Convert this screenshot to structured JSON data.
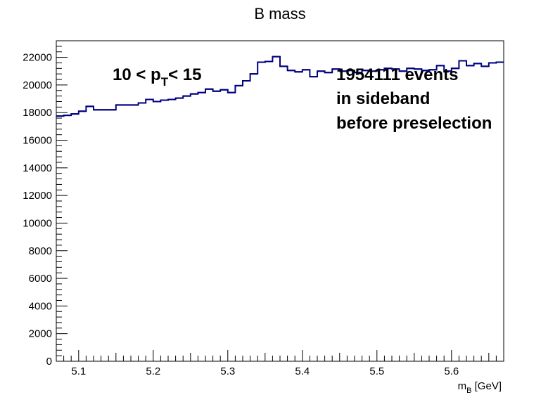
{
  "chart_data": {
    "type": "histogram",
    "title": "B mass",
    "xlabel": "",
    "xlabel_main": "m",
    "xlabel_sub": "B",
    "xlabel_unit": " [GeV]",
    "ylabel": "",
    "xlim": [
      5.07,
      5.67
    ],
    "ylim": [
      0,
      23200
    ],
    "x_ticks": [
      5.1,
      5.2,
      5.3,
      5.4,
      5.5,
      5.6
    ],
    "x_tick_labels": [
      "5.1",
      "5.2",
      "5.3",
      "5.4",
      "5.5",
      "5.6"
    ],
    "y_ticks": [
      0,
      2000,
      4000,
      6000,
      8000,
      10000,
      12000,
      14000,
      16000,
      18000,
      20000,
      22000
    ],
    "y_tick_labels": [
      "0",
      "2000",
      "4000",
      "6000",
      "8000",
      "10000",
      "12000",
      "14000",
      "16000",
      "18000",
      "20000",
      "22000"
    ],
    "bin_edges": [
      5.07,
      5.08,
      5.09,
      5.1,
      5.11,
      5.12,
      5.13,
      5.14,
      5.15,
      5.16,
      5.17,
      5.18,
      5.19,
      5.2,
      5.21,
      5.22,
      5.23,
      5.24,
      5.25,
      5.26,
      5.27,
      5.28,
      5.29,
      5.3,
      5.31,
      5.32,
      5.33,
      5.34,
      5.35,
      5.36,
      5.37,
      5.38,
      5.39,
      5.4,
      5.41,
      5.42,
      5.43,
      5.44,
      5.45,
      5.46,
      5.47,
      5.48,
      5.49,
      5.5,
      5.51,
      5.52,
      5.53,
      5.54,
      5.55,
      5.56,
      5.57,
      5.58,
      5.59,
      5.6,
      5.61,
      5.62,
      5.63,
      5.64,
      5.65,
      5.66,
      5.67
    ],
    "values": [
      17750,
      17800,
      17900,
      18100,
      18450,
      18200,
      18200,
      18200,
      18550,
      18550,
      18550,
      18700,
      18950,
      18800,
      18900,
      18950,
      19050,
      19200,
      19350,
      19450,
      19700,
      19550,
      19650,
      19450,
      19950,
      20300,
      20800,
      21650,
      21700,
      22050,
      21350,
      21050,
      20950,
      21100,
      20600,
      21000,
      20900,
      21150,
      21000,
      21050,
      20900,
      21050,
      21000,
      21100,
      21200,
      21150,
      21000,
      21200,
      21150,
      21050,
      21100,
      21400,
      21000,
      21200,
      21750,
      21400,
      21550,
      21350,
      21600,
      21650
    ],
    "line_color": "#000080",
    "grid": false,
    "annotations": {
      "pt_prefix": "10 < p",
      "pt_sub": "T",
      "pt_suffix": "< 15",
      "events_line1": "1954111 events",
      "events_line2": "in sideband",
      "events_line3": "before preselection"
    }
  }
}
